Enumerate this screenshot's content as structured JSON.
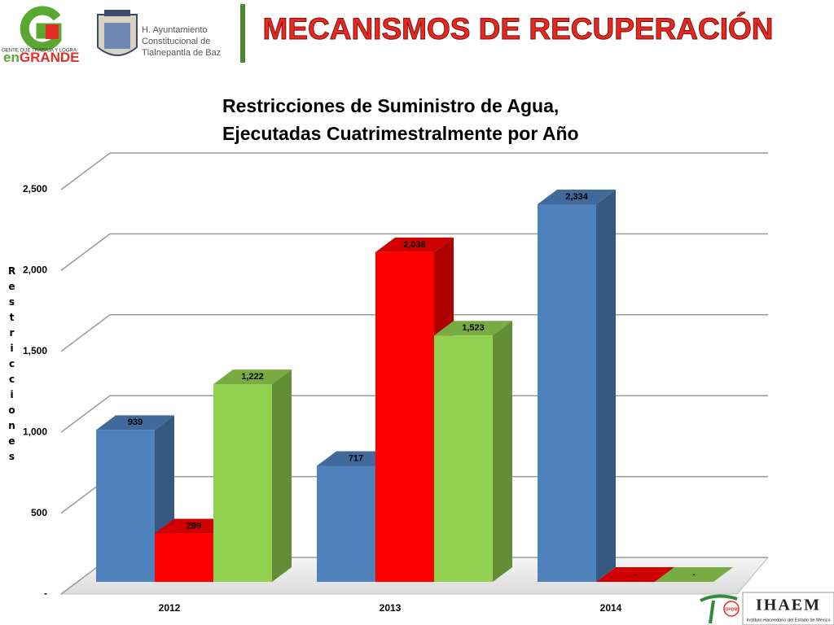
{
  "header": {
    "slide_title": "MECANISMOS DE RECUPERACIÓN",
    "logo_tagline": "GENTE QUE TRABAJA Y LOGRA",
    "logo_en": "en",
    "logo_grande": "GRANDE",
    "municipality": [
      "H. Ayuntamiento",
      "Constitucional de",
      "Tlalnepantla de Baz"
    ]
  },
  "footer": {
    "opdm": "OPDM",
    "ihaem": "IHAEM",
    "ihaem_name": "Instituto Hacendario del Estado de México"
  },
  "chart_data": {
    "type": "bar3d",
    "title": [
      "Restricciones de Suministro de Agua,",
      "Ejecutadas Cuatrimestralmente por Año"
    ],
    "y_label": "Restricciones",
    "categories": [
      "2012",
      "2013",
      "2014"
    ],
    "series": [
      {
        "color": "#4f81bd",
        "values": [
          939,
          717,
          2334
        ],
        "value_labels": [
          "939",
          "717",
          "2,334"
        ]
      },
      {
        "color": "#ff0000",
        "values": [
          299,
          2038,
          0
        ],
        "value_labels": [
          "299",
          "2,038",
          "-"
        ]
      },
      {
        "color": "#92d050",
        "values": [
          1222,
          1523,
          0
        ],
        "value_labels": [
          "1,222",
          "1,523",
          "-"
        ]
      }
    ],
    "ylim": [
      0,
      2500
    ],
    "yticks": [
      {
        "value": 0,
        "label": "-"
      },
      500,
      {
        "value": 1000,
        "label": "1,000"
      },
      {
        "value": 1500,
        "label": "1,500"
      },
      {
        "value": 2000,
        "label": "2,000"
      },
      {
        "value": 2500,
        "label": "2,500"
      }
    ],
    "grid": true
  }
}
